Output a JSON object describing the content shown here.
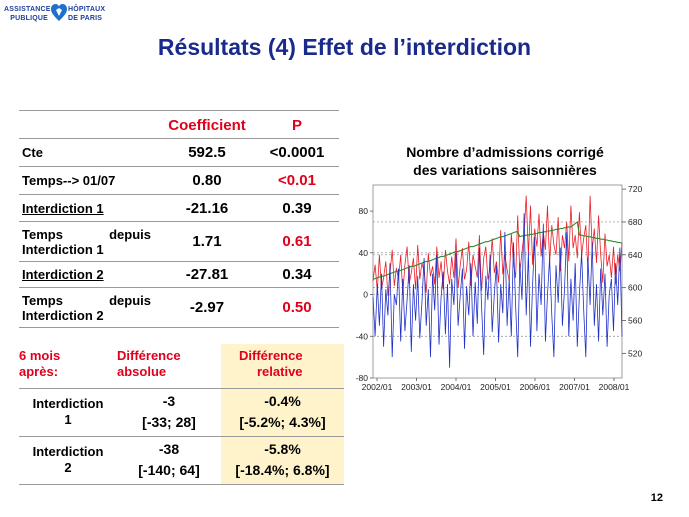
{
  "logo": {
    "left_line1": "ASSISTANCE",
    "left_line2": "PUBLIQUE",
    "right_line1": "HÔPITAUX",
    "right_line2": "DE PARIS",
    "icon": "aphp-heart-icon",
    "color": "#1f3f9a"
  },
  "title": "Résultats (4) Effet de l’interdiction",
  "regression_table": {
    "headers": [
      "",
      "Coefficient",
      "P"
    ],
    "rows": [
      {
        "label": "Cte",
        "label_a": "",
        "label_b": "",
        "coef": "592.5",
        "p": "<0.0001",
        "p_red": false
      },
      {
        "label": "Temps--> 01/07",
        "label_a": "",
        "label_b": "",
        "coef": "0.80",
        "p": "<0.01",
        "p_red": true
      },
      {
        "label": "Interdiction 1",
        "label_a": "",
        "label_b": "",
        "coef": "-21.16",
        "p": "0.39",
        "p_red": false
      },
      {
        "label": "",
        "label_a": "Temps",
        "label_b": "depuis",
        "label_c": "Interdiction 1",
        "coef": "1.71",
        "p": "0.61",
        "p_red": true
      },
      {
        "label": "Interdiction 2",
        "label_a": "",
        "label_b": "",
        "coef": "-27.81",
        "p": "0.34",
        "p_red": false
      },
      {
        "label": "",
        "label_a": "Temps",
        "label_b": "depuis",
        "label_c": "Interdiction 2",
        "coef": "-2.97",
        "p": "0.50",
        "p_red": true
      }
    ]
  },
  "difference_table": {
    "header": {
      "col1_a": "6 mois",
      "col1_b": "après:",
      "col2_a": "Différence",
      "col2_b": "absolue",
      "col3_a": "Différence",
      "col3_b": "relative"
    },
    "rows": [
      {
        "label_a": "Interdiction",
        "label_b": "1",
        "abs": "-3",
        "abs_ci": "[-33; 28]",
        "rel": "-0.4%",
        "rel_ci": "[-5.2%; 4.3%]"
      },
      {
        "label_a": "Interdiction",
        "label_b": "2",
        "abs": "-38",
        "abs_ci": "[-140; 64]",
        "rel": "-5.8%",
        "rel_ci": "[-18.4%; 6.8%]"
      }
    ]
  },
  "chart_data": {
    "type": "line",
    "title_line1": "Nombre d’admissions corrigé",
    "title_line2": "des variations saisonnières",
    "x_ticks": [
      "2002/01",
      "2003/01",
      "2004/01",
      "2005/01",
      "2006/01",
      "2007/01",
      "2008/01"
    ],
    "x_range": [
      "2002/01",
      "2008/06"
    ],
    "right_axis": {
      "ticks": [
        520,
        560,
        600,
        640,
        680,
        720
      ],
      "range": [
        490,
        725
      ]
    },
    "left_axis": {
      "ticks": [
        -80,
        -40,
        0,
        40,
        80
      ],
      "range": [
        -80,
        105
      ]
    },
    "grid_lines_dashed_left": [
      -40,
      0,
      40
    ],
    "grid_lines_dashed_right": [
      600,
      640,
      680
    ],
    "colors": {
      "admissions": "#e8202a",
      "fitted": "#2e8b2e",
      "residual": "#2030c8",
      "grid": "#888888"
    },
    "series": [
      {
        "axis": "right",
        "values": [
          608,
          628,
          596,
          640,
          598,
          612,
          632,
          590,
          618,
          646,
          602,
          624,
          610,
          640,
          592,
          628,
          650,
          605,
          618,
          636,
          598,
          652,
          610,
          630,
          620,
          594,
          642,
          614,
          626,
          604,
          650,
          612,
          632,
          598,
          646,
          620,
          604,
          638,
          612,
          660,
          600,
          628,
          648,
          610,
          622,
          656,
          602,
          640,
          626,
          612,
          664,
          596,
          636,
          650,
          610,
          624,
          660,
          618,
          632,
          606,
          670,
          616,
          640,
          622,
          608,
          666,
          630,
          612,
          688,
          618,
          644,
          666,
          712,
          640,
          700,
          628,
          672,
          650,
          690,
          638,
          668,
          646,
          700,
          630,
          676,
          652,
          640,
          686,
          620,
          664,
          648,
          680,
          632,
          700,
          648,
          664,
          636,
          692,
          640,
          660,
          676,
          620,
          712,
          646,
          672,
          630,
          688,
          640,
          606,
          666,
          626,
          640,
          612,
          650,
          604,
          640,
          620,
          654
        ]
      },
      {
        "axis": "right",
        "values": [
          610,
          611,
          612,
          613,
          614,
          614,
          615,
          616,
          617,
          618,
          619,
          620,
          620,
          621,
          622,
          623,
          624,
          625,
          626,
          626,
          627,
          628,
          629,
          630,
          631,
          632,
          632,
          633,
          634,
          635,
          636,
          637,
          638,
          638,
          639,
          640,
          641,
          642,
          643,
          644,
          644,
          645,
          646,
          647,
          648,
          649,
          650,
          650,
          651,
          652,
          653,
          654,
          655,
          656,
          656,
          657,
          658,
          659,
          660,
          661,
          662,
          662,
          663,
          664,
          665,
          666,
          667,
          668,
          668,
          662,
          663,
          663,
          664,
          664,
          665,
          665,
          666,
          666,
          667,
          667,
          668,
          668,
          669,
          669,
          670,
          670,
          671,
          671,
          672,
          672,
          673,
          673,
          674,
          674,
          676,
          678,
          680,
          664,
          664,
          663,
          663,
          662,
          662,
          661,
          661,
          660,
          660,
          659,
          659,
          658,
          658,
          657,
          657,
          656,
          656,
          655,
          655,
          654
        ]
      },
      {
        "axis": "left",
        "values": [
          -2,
          -40,
          10,
          -30,
          20,
          -50,
          5,
          -20,
          30,
          -60,
          0,
          -10,
          25,
          -45,
          15,
          -35,
          -5,
          28,
          -55,
          10,
          -25,
          18,
          -42,
          -8,
          35,
          -30,
          5,
          -60,
          20,
          -15,
          38,
          -48,
          -2,
          22,
          -38,
          10,
          -70,
          15,
          -10,
          40,
          -30,
          0,
          25,
          -52,
          8,
          -20,
          30,
          -40,
          12,
          -28,
          45,
          -10,
          -58,
          18,
          -5,
          38,
          -36,
          0,
          28,
          -46,
          10,
          -18,
          60,
          -30,
          15,
          -40,
          50,
          -10,
          -60,
          30,
          -5,
          78,
          -20,
          40,
          -50,
          10,
          55,
          -35,
          20,
          -10,
          68,
          -45,
          0,
          35,
          -20,
          -60,
          28,
          -8,
          45,
          -30,
          5,
          60,
          -40,
          15,
          -25,
          30,
          -50,
          0,
          40,
          -15,
          -60,
          35,
          -10,
          50,
          -30,
          10,
          -45,
          25,
          -20,
          20,
          -50,
          0,
          15,
          -35,
          30,
          -10,
          45,
          -40
        ]
      }
    ]
  },
  "page_number": "12"
}
